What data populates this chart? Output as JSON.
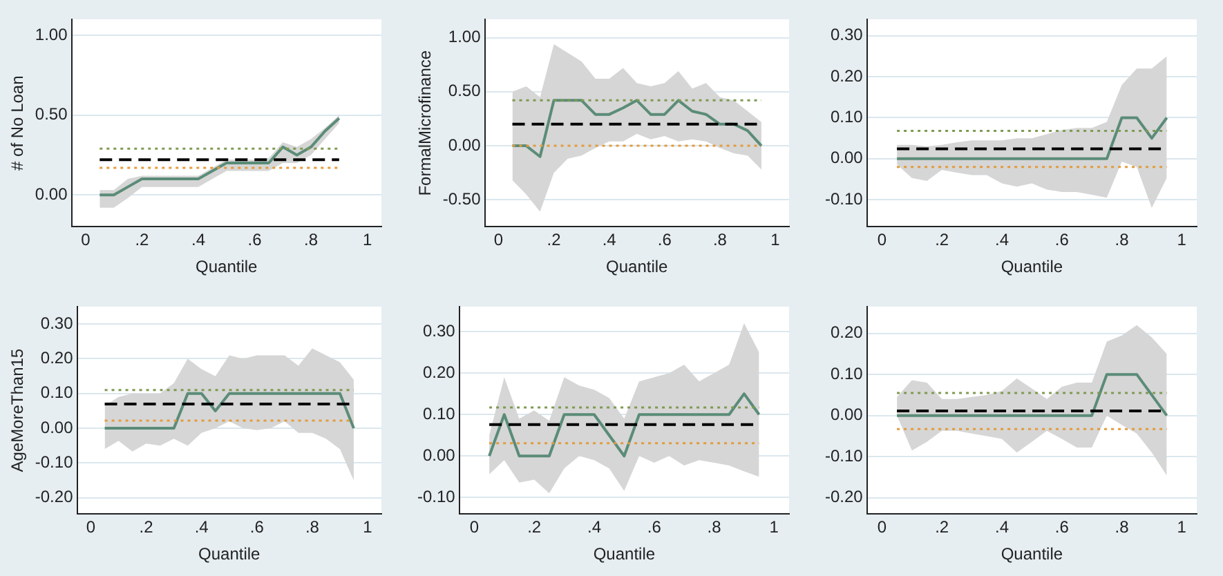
{
  "chart_data": [
    {
      "type": "line",
      "ylabel": "# of No Loan",
      "xlabel": "Quantile",
      "grid": "y",
      "legend": false,
      "line_style": "solid",
      "x": [
        0.05,
        0.1,
        0.15,
        0.2,
        0.25,
        0.3,
        0.35,
        0.4,
        0.45,
        0.5,
        0.55,
        0.6,
        0.65,
        0.7,
        0.75,
        0.8,
        0.85,
        0.9
      ],
      "series": [
        {
          "color": "#5b8c78",
          "values": [
            0,
            0,
            0.05,
            0.1,
            0.1,
            0.1,
            0.1,
            0.1,
            0.15,
            0.2,
            0.2,
            0.2,
            0.2,
            0.3,
            0.25,
            0.3,
            0.4,
            0.48
          ],
          "lower": [
            -0.08,
            -0.08,
            -0.02,
            0.05,
            0.05,
            0.05,
            0.05,
            0.05,
            0.1,
            0.15,
            0.15,
            0.15,
            0.15,
            0.2,
            0.2,
            0.25,
            0.35,
            0.45
          ],
          "upper": [
            0.03,
            0.03,
            0.1,
            0.12,
            0.12,
            0.12,
            0.12,
            0.12,
            0.17,
            0.22,
            0.22,
            0.22,
            0.23,
            0.33,
            0.3,
            0.35,
            0.42,
            0.5
          ]
        }
      ],
      "ylim": [
        -0.2,
        1.1
      ],
      "yticks": [
        {
          "value": 0,
          "label": "0.00"
        },
        {
          "value": 0.5,
          "label": "0.50"
        },
        {
          "value": 1,
          "label": "1.00"
        }
      ],
      "xlim": [
        -0.05,
        1.05
      ],
      "xticks": [
        {
          "value": 0,
          "label": "0"
        },
        {
          "value": 0.2,
          "label": ".2"
        },
        {
          "value": 0.4,
          "label": ".4"
        },
        {
          "value": 0.6,
          "label": ".6"
        },
        {
          "value": 0.8,
          "label": ".8"
        },
        {
          "value": 1,
          "label": "1"
        }
      ],
      "ref_lines": [
        {
          "axis": "y",
          "value": 0.22,
          "color": "#000000",
          "line_style": "dashed"
        },
        {
          "axis": "y",
          "value": 0.29,
          "color": "#7f9a52",
          "line_style": "dotted"
        },
        {
          "axis": "y",
          "value": 0.17,
          "color": "#e39b3c",
          "line_style": "dotted"
        }
      ]
    },
    {
      "type": "line",
      "ylabel": "FormalMicrofinance",
      "xlabel": "Quantile",
      "grid": "y",
      "legend": false,
      "line_style": "solid",
      "x": [
        0.05,
        0.1,
        0.15,
        0.2,
        0.25,
        0.3,
        0.35,
        0.4,
        0.45,
        0.5,
        0.55,
        0.6,
        0.65,
        0.7,
        0.75,
        0.8,
        0.85,
        0.9,
        0.95
      ],
      "series": [
        {
          "color": "#5b8c78",
          "values": [
            0,
            0,
            -0.1,
            0.42,
            0.42,
            0.42,
            0.29,
            0.29,
            0.35,
            0.42,
            0.29,
            0.29,
            0.42,
            0.32,
            0.29,
            0.2,
            0.2,
            0.14,
            0
          ],
          "lower": [
            -0.32,
            -0.45,
            -0.61,
            -0.25,
            -0.12,
            -0.09,
            -0.02,
            0.04,
            0.04,
            0.11,
            0.06,
            0.09,
            0.04,
            0.06,
            0.04,
            -0.02,
            -0.07,
            -0.09,
            -0.22
          ],
          "upper": [
            0.5,
            0.55,
            0.45,
            0.94,
            0.86,
            0.78,
            0.62,
            0.62,
            0.72,
            0.58,
            0.55,
            0.58,
            0.69,
            0.53,
            0.58,
            0.45,
            0.42,
            0.32,
            0.22
          ]
        }
      ],
      "ylim": [
        -0.75,
        1.17
      ],
      "yticks": [
        {
          "value": -0.5,
          "label": "-0.50"
        },
        {
          "value": 0,
          "label": "0.00"
        },
        {
          "value": 0.5,
          "label": "0.50"
        },
        {
          "value": 1,
          "label": "1.00"
        }
      ],
      "xlim": [
        -0.05,
        1.05
      ],
      "xticks": [
        {
          "value": 0,
          "label": "0"
        },
        {
          "value": 0.2,
          "label": ".2"
        },
        {
          "value": 0.4,
          "label": ".4"
        },
        {
          "value": 0.6,
          "label": ".6"
        },
        {
          "value": 0.8,
          "label": ".8"
        },
        {
          "value": 1,
          "label": "1"
        }
      ],
      "ref_lines": [
        {
          "axis": "y",
          "value": 0.2,
          "color": "#000000",
          "line_style": "dashed"
        },
        {
          "axis": "y",
          "value": 0.42,
          "color": "#7f9a52",
          "line_style": "dotted"
        },
        {
          "axis": "y",
          "value": 0,
          "color": "#e39b3c",
          "line_style": "dotted"
        }
      ]
    },
    {
      "type": "line",
      "xlabel": "Quantile",
      "grid": "y",
      "legend": false,
      "line_style": "solid",
      "x": [
        0.05,
        0.1,
        0.15,
        0.2,
        0.25,
        0.3,
        0.35,
        0.4,
        0.45,
        0.5,
        0.55,
        0.6,
        0.65,
        0.7,
        0.75,
        0.8,
        0.85,
        0.9,
        0.95
      ],
      "series": [
        {
          "color": "#5b8c78",
          "values": [
            0,
            0,
            0,
            0,
            0,
            0,
            0,
            0,
            0,
            0,
            0,
            0,
            0,
            0,
            0,
            0.1,
            0.1,
            0.05,
            0.1
          ],
          "lower": [
            -0.014,
            -0.047,
            -0.054,
            -0.027,
            -0.034,
            -0.04,
            -0.04,
            -0.06,
            -0.068,
            -0.06,
            -0.075,
            -0.081,
            -0.081,
            -0.088,
            -0.095,
            -0.007,
            -0.02,
            -0.12,
            -0.047
          ],
          "upper": [
            0.034,
            0.034,
            0.03,
            0.034,
            0.04,
            0.045,
            0.045,
            0.045,
            0.05,
            0.05,
            0.06,
            0.07,
            0.075,
            0.075,
            0.09,
            0.18,
            0.22,
            0.22,
            0.25
          ]
        }
      ],
      "ylim": [
        -0.166,
        0.34
      ],
      "yticks": [
        {
          "value": -0.1,
          "label": "-0.10"
        },
        {
          "value": 0,
          "label": "0.00"
        },
        {
          "value": 0.1,
          "label": "0.10"
        },
        {
          "value": 0.2,
          "label": "0.20"
        },
        {
          "value": 0.3,
          "label": "0.30"
        }
      ],
      "xlim": [
        -0.05,
        1.05
      ],
      "xticks": [
        {
          "value": 0,
          "label": "0"
        },
        {
          "value": 0.2,
          "label": ".2"
        },
        {
          "value": 0.4,
          "label": ".4"
        },
        {
          "value": 0.6,
          "label": ".6"
        },
        {
          "value": 0.8,
          "label": ".8"
        },
        {
          "value": 1,
          "label": "1"
        }
      ],
      "ref_lines": [
        {
          "axis": "y",
          "value": 0.024,
          "color": "#000000",
          "line_style": "dashed"
        },
        {
          "axis": "y",
          "value": 0.068,
          "color": "#7f9a52",
          "line_style": "dotted"
        },
        {
          "axis": "y",
          "value": -0.02,
          "color": "#e39b3c",
          "line_style": "dotted"
        }
      ]
    },
    {
      "type": "line",
      "ylabel": "AgeMoreThan15",
      "xlabel": "Quantile",
      "grid": "y",
      "legend": false,
      "line_style": "solid",
      "x": [
        0.05,
        0.1,
        0.15,
        0.2,
        0.25,
        0.3,
        0.35,
        0.4,
        0.45,
        0.5,
        0.55,
        0.6,
        0.65,
        0.7,
        0.75,
        0.8,
        0.85,
        0.9,
        0.95
      ],
      "series": [
        {
          "color": "#5b8c78",
          "values": [
            0,
            0,
            0,
            0,
            0,
            0,
            0.1,
            0.1,
            0.05,
            0.1,
            0.1,
            0.1,
            0.1,
            0.1,
            0.1,
            0.1,
            0.1,
            0.1,
            0
          ],
          "lower": [
            -0.06,
            -0.036,
            -0.067,
            -0.044,
            -0.05,
            -0.03,
            -0.05,
            -0.013,
            0,
            0.02,
            0,
            -0.005,
            0,
            0.02,
            -0.013,
            -0.013,
            -0.03,
            -0.06,
            -0.15
          ],
          "upper": [
            0.065,
            0.09,
            0.1,
            0.1,
            0.1,
            0.13,
            0.2,
            0.17,
            0.15,
            0.21,
            0.2,
            0.21,
            0.21,
            0.21,
            0.18,
            0.23,
            0.21,
            0.19,
            0.14
          ]
        }
      ],
      "ylim": [
        -0.247,
        0.35
      ],
      "yticks": [
        {
          "value": -0.2,
          "label": "-0.20"
        },
        {
          "value": -0.1,
          "label": "-0.10"
        },
        {
          "value": 0,
          "label": "0.00"
        },
        {
          "value": 0.1,
          "label": "0.10"
        },
        {
          "value": 0.2,
          "label": "0.20"
        },
        {
          "value": 0.3,
          "label": "0.30"
        }
      ],
      "xlim": [
        -0.05,
        1.05
      ],
      "xticks": [
        {
          "value": 0,
          "label": "0"
        },
        {
          "value": 0.2,
          "label": ".2"
        },
        {
          "value": 0.4,
          "label": ".4"
        },
        {
          "value": 0.6,
          "label": ".6"
        },
        {
          "value": 0.8,
          "label": ".8"
        },
        {
          "value": 1,
          "label": "1"
        }
      ],
      "ref_lines": [
        {
          "axis": "y",
          "value": 0.07,
          "color": "#000000",
          "line_style": "dashed"
        },
        {
          "axis": "y",
          "value": 0.11,
          "color": "#7f9a52",
          "line_style": "dotted"
        },
        {
          "axis": "y",
          "value": 0.022,
          "color": "#e39b3c",
          "line_style": "dotted"
        }
      ]
    },
    {
      "type": "line",
      "xlabel": "Quantile",
      "grid": "y",
      "legend": false,
      "line_style": "solid",
      "x": [
        0.05,
        0.1,
        0.15,
        0.2,
        0.25,
        0.3,
        0.35,
        0.4,
        0.45,
        0.5,
        0.55,
        0.6,
        0.65,
        0.7,
        0.75,
        0.8,
        0.85,
        0.9,
        0.95
      ],
      "series": [
        {
          "color": "#5b8c78",
          "values": [
            0,
            0.1,
            0,
            0,
            0,
            0.1,
            0.1,
            0.1,
            0.05,
            0,
            0.1,
            0.1,
            0.1,
            0.1,
            0.1,
            0.1,
            0.1,
            0.15,
            0.1
          ],
          "lower": [
            -0.044,
            -0.01,
            -0.064,
            -0.057,
            -0.09,
            -0.03,
            0,
            -0.01,
            -0.03,
            -0.084,
            0,
            -0.016,
            0,
            -0.023,
            -0.01,
            -0.016,
            -0.023,
            -0.037,
            -0.05
          ],
          "upper": [
            0.05,
            0.19,
            0.09,
            0.11,
            0.085,
            0.19,
            0.17,
            0.16,
            0.14,
            0.09,
            0.18,
            0.19,
            0.2,
            0.22,
            0.18,
            0.2,
            0.22,
            0.32,
            0.25
          ]
        }
      ],
      "ylim": [
        -0.14,
        0.36
      ],
      "yticks": [
        {
          "value": -0.1,
          "label": "-0.10"
        },
        {
          "value": 0,
          "label": "0.00"
        },
        {
          "value": 0.1,
          "label": "0.10"
        },
        {
          "value": 0.2,
          "label": "0.20"
        },
        {
          "value": 0.3,
          "label": "0.30"
        }
      ],
      "xlim": [
        -0.05,
        1.05
      ],
      "xticks": [
        {
          "value": 0,
          "label": "0"
        },
        {
          "value": 0.2,
          "label": ".2"
        },
        {
          "value": 0.4,
          "label": ".4"
        },
        {
          "value": 0.6,
          "label": ".6"
        },
        {
          "value": 0.8,
          "label": ".8"
        },
        {
          "value": 1,
          "label": "1"
        }
      ],
      "ref_lines": [
        {
          "axis": "y",
          "value": 0.076,
          "color": "#000000",
          "line_style": "dashed"
        },
        {
          "axis": "y",
          "value": 0.117,
          "color": "#7f9a52",
          "line_style": "dotted"
        },
        {
          "axis": "y",
          "value": 0.031,
          "color": "#e39b3c",
          "line_style": "dotted"
        }
      ]
    },
    {
      "type": "line",
      "xlabel": "Quantile",
      "grid": "y",
      "legend": false,
      "line_style": "solid",
      "x": [
        0.05,
        0.1,
        0.15,
        0.2,
        0.25,
        0.3,
        0.35,
        0.4,
        0.45,
        0.5,
        0.55,
        0.6,
        0.65,
        0.7,
        0.75,
        0.8,
        0.85,
        0.9,
        0.95
      ],
      "series": [
        {
          "color": "#5b8c78",
          "values": [
            0,
            0,
            0,
            0,
            0,
            0,
            0,
            0,
            0,
            0,
            0,
            0,
            0,
            0,
            0.1,
            0.1,
            0.1,
            0.05,
            0
          ],
          "lower": [
            0,
            -0.085,
            -0.064,
            -0.037,
            -0.037,
            -0.044,
            -0.05,
            -0.057,
            -0.09,
            -0.064,
            -0.037,
            -0.057,
            -0.078,
            -0.078,
            0,
            -0.023,
            -0.044,
            -0.09,
            -0.146
          ],
          "upper": [
            0.045,
            0.086,
            0.08,
            0.04,
            0.04,
            0.045,
            0.05,
            0.06,
            0.09,
            0.066,
            0.04,
            0.07,
            0.08,
            0.08,
            0.18,
            0.195,
            0.22,
            0.19,
            0.15
          ]
        }
      ],
      "ylim": [
        -0.24,
        0.265
      ],
      "yticks": [
        {
          "value": -0.2,
          "label": "-0.20"
        },
        {
          "value": -0.1,
          "label": "-0.10"
        },
        {
          "value": 0,
          "label": "0.00"
        },
        {
          "value": 0.1,
          "label": "0.10"
        },
        {
          "value": 0.2,
          "label": "0.20"
        }
      ],
      "xlim": [
        -0.05,
        1.05
      ],
      "xticks": [
        {
          "value": 0,
          "label": "0"
        },
        {
          "value": 0.2,
          "label": ".2"
        },
        {
          "value": 0.4,
          "label": ".4"
        },
        {
          "value": 0.6,
          "label": ".6"
        },
        {
          "value": 0.8,
          "label": ".8"
        },
        {
          "value": 1,
          "label": "1"
        }
      ],
      "ref_lines": [
        {
          "axis": "y",
          "value": 0.011,
          "color": "#000000",
          "line_style": "dashed"
        },
        {
          "axis": "y",
          "value": 0.055,
          "color": "#7f9a52",
          "line_style": "dotted"
        },
        {
          "axis": "y",
          "value": -0.033,
          "color": "#e39b3c",
          "line_style": "dotted"
        }
      ]
    }
  ]
}
